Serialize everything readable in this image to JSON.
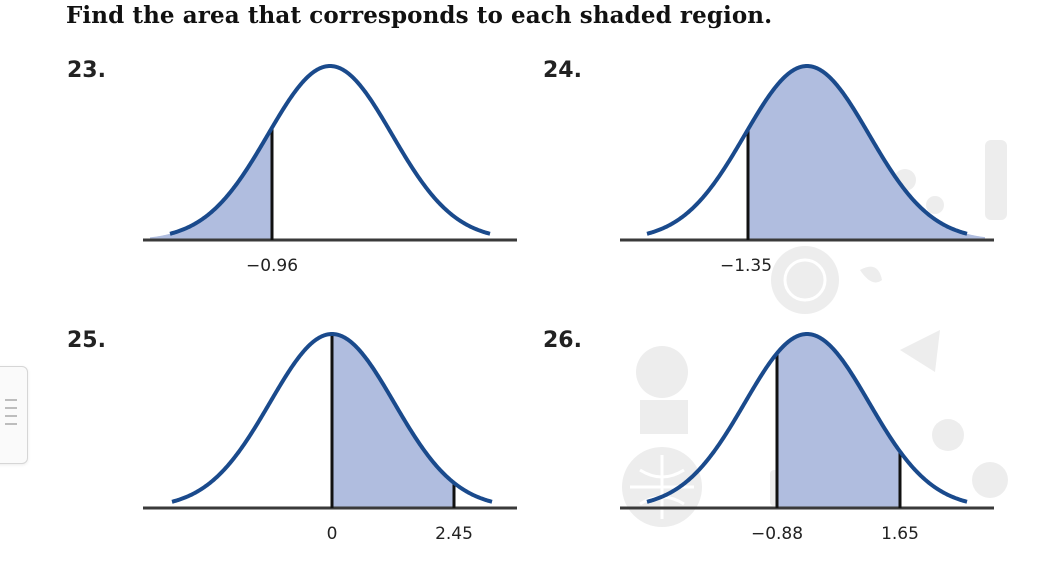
{
  "heading": "Find the area that corresponds to each shaded region.",
  "colors": {
    "curve": "#1a4a8c",
    "shade": "#b0bddf",
    "axis": "#3a3a3a"
  },
  "problems": [
    {
      "number": "23.",
      "ticks": [
        "−0.96"
      ]
    },
    {
      "number": "24.",
      "ticks": [
        "−1.35"
      ]
    },
    {
      "number": "25.",
      "ticks": [
        "0",
        "2.45"
      ]
    },
    {
      "number": "26.",
      "ticks": [
        "−0.88",
        "1.65"
      ]
    }
  ],
  "side_handle_icon": "menu-lines-icon"
}
